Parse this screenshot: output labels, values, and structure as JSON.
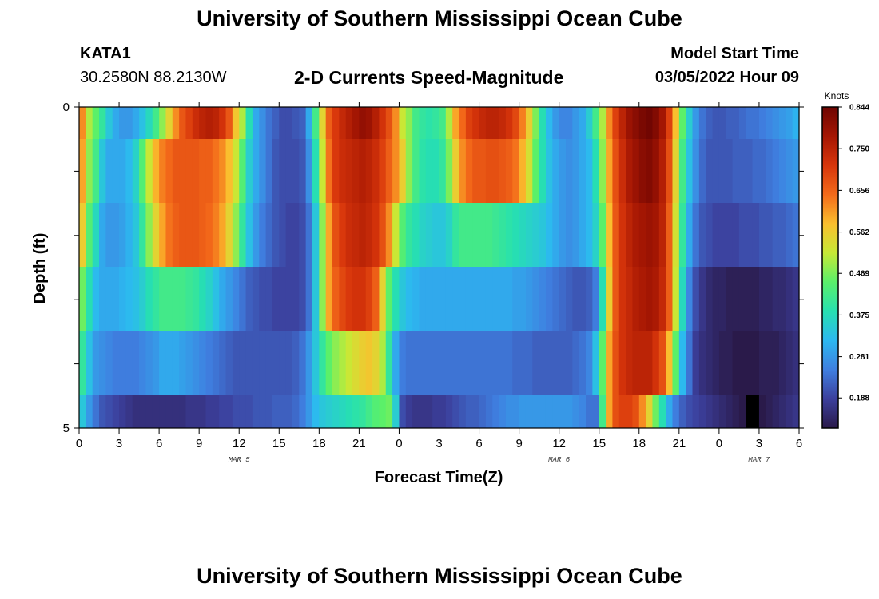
{
  "header": {
    "title": "University of Southern Mississippi Ocean Cube",
    "station": "KATA1",
    "coordinates": "30.2580N  88.2130W",
    "product": "2-D Currents Speed-Magnitude",
    "model_start_label": "Model Start Time",
    "model_start_value": "03/05/2022 Hour 09"
  },
  "footer": {
    "title": "University of Southern Mississippi Ocean Cube"
  },
  "chart_data": {
    "type": "heatmap",
    "xlabel": "Forecast Time(Z)",
    "ylabel": "Depth (ft)",
    "x_tick_labels": [
      "0",
      "3",
      "6",
      "9",
      "12",
      "15",
      "18",
      "21",
      "0",
      "3",
      "6",
      "9",
      "12",
      "15",
      "18",
      "21",
      "0",
      "3",
      "6"
    ],
    "y_tick_labels": [
      "0",
      "5"
    ],
    "y_range": [
      0,
      5
    ],
    "date_labels": [
      "MAR 5",
      "MAR 6",
      "MAR 7"
    ],
    "colorbar": {
      "title": "Knots",
      "ticks": [
        "0.844",
        "0.750",
        "0.656",
        "0.562",
        "0.469",
        "0.375",
        "0.281",
        "0.188"
      ],
      "min": 0.12,
      "max": 0.844,
      "stops": [
        "#2a1a4a",
        "#3c3f9c",
        "#3f7fe0",
        "#2cb8f0",
        "#27e0b0",
        "#5af06a",
        "#c6ea36",
        "#fbbf2e",
        "#f36a1a",
        "#d8360b",
        "#a51603",
        "#6e0502"
      ]
    },
    "hours": [
      0,
      0.5,
      1,
      1.5,
      2,
      2.5,
      3,
      3.5,
      4,
      4.5,
      5,
      5.5,
      6,
      6.5,
      7,
      7.5,
      8,
      8.5,
      9,
      9.5,
      10,
      10.5,
      11,
      11.5,
      12,
      12.5,
      13,
      13.5,
      14,
      14.5,
      15,
      15.5,
      16,
      16.5,
      17,
      17.5,
      18,
      18.5,
      19,
      19.5,
      20,
      20.5,
      21,
      21.5,
      22,
      22.5,
      23,
      23.5,
      24,
      24.5,
      25,
      25.5,
      26,
      26.5,
      27,
      27.5,
      28,
      28.5,
      29,
      29.5,
      30,
      30.5,
      31,
      31.5,
      32,
      32.5,
      33,
      33.5,
      34,
      34.5,
      35,
      35.5,
      36,
      36.5,
      37,
      37.5,
      38,
      38.5,
      39,
      39.5,
      40,
      40.5,
      41,
      41.5,
      42,
      42.5,
      43,
      43.5,
      44,
      44.5,
      45,
      45.5,
      46,
      46.5,
      47,
      47.5,
      48,
      48.5,
      49,
      49.5,
      50,
      50.5,
      51,
      51.5,
      52,
      52.5,
      53,
      53.5
    ],
    "depth_layers": [
      0,
      1,
      2,
      3,
      4,
      5
    ],
    "speed_knots": [
      [
        0.62,
        0.5,
        0.45,
        0.4,
        0.34,
        0.3,
        0.28,
        0.28,
        0.3,
        0.33,
        0.37,
        0.42,
        0.48,
        0.55,
        0.62,
        0.67,
        0.7,
        0.73,
        0.75,
        0.76,
        0.75,
        0.72,
        0.67,
        0.57,
        0.5,
        0.38,
        0.3,
        0.27,
        0.24,
        0.22,
        0.2,
        0.2,
        0.21,
        0.22,
        0.3,
        0.42,
        0.55,
        0.66,
        0.71,
        0.74,
        0.76,
        0.78,
        0.8,
        0.79,
        0.76,
        0.72,
        0.68,
        0.62,
        0.52,
        0.48,
        0.42,
        0.4,
        0.39,
        0.4,
        0.42,
        0.5,
        0.6,
        0.65,
        0.7,
        0.72,
        0.74,
        0.75,
        0.75,
        0.74,
        0.72,
        0.69,
        0.63,
        0.56,
        0.47,
        0.38,
        0.32,
        0.28,
        0.26,
        0.26,
        0.28,
        0.3,
        0.35,
        0.42,
        0.5,
        0.62,
        0.7,
        0.75,
        0.79,
        0.81,
        0.83,
        0.84,
        0.82,
        0.78,
        0.7,
        0.58,
        0.45,
        0.35,
        0.28,
        0.24,
        0.22,
        0.21,
        0.21,
        0.22,
        0.22,
        0.23,
        0.24,
        0.24,
        0.25,
        0.26,
        0.27,
        0.28,
        0.29,
        0.31
      ],
      [
        0.6,
        0.48,
        0.42,
        0.34,
        0.3,
        0.3,
        0.3,
        0.32,
        0.36,
        0.44,
        0.52,
        0.59,
        0.63,
        0.65,
        0.67,
        0.67,
        0.67,
        0.67,
        0.66,
        0.66,
        0.64,
        0.62,
        0.58,
        0.52,
        0.44,
        0.35,
        0.3,
        0.27,
        0.24,
        0.21,
        0.2,
        0.2,
        0.2,
        0.21,
        0.27,
        0.38,
        0.52,
        0.64,
        0.71,
        0.73,
        0.74,
        0.75,
        0.76,
        0.75,
        0.73,
        0.7,
        0.66,
        0.62,
        0.56,
        0.48,
        0.42,
        0.39,
        0.38,
        0.38,
        0.4,
        0.47,
        0.56,
        0.62,
        0.65,
        0.67,
        0.67,
        0.68,
        0.68,
        0.67,
        0.66,
        0.64,
        0.59,
        0.53,
        0.45,
        0.38,
        0.33,
        0.3,
        0.28,
        0.27,
        0.28,
        0.3,
        0.32,
        0.38,
        0.48,
        0.6,
        0.68,
        0.73,
        0.77,
        0.79,
        0.81,
        0.82,
        0.8,
        0.76,
        0.68,
        0.55,
        0.42,
        0.33,
        0.27,
        0.23,
        0.21,
        0.21,
        0.21,
        0.21,
        0.22,
        0.22,
        0.22,
        0.23,
        0.23,
        0.24,
        0.25,
        0.26,
        0.27,
        0.28
      ],
      [
        0.56,
        0.44,
        0.37,
        0.3,
        0.28,
        0.28,
        0.29,
        0.31,
        0.34,
        0.4,
        0.48,
        0.55,
        0.6,
        0.64,
        0.66,
        0.67,
        0.67,
        0.67,
        0.66,
        0.65,
        0.63,
        0.6,
        0.55,
        0.48,
        0.4,
        0.33,
        0.28,
        0.25,
        0.23,
        0.21,
        0.2,
        0.19,
        0.19,
        0.2,
        0.24,
        0.34,
        0.48,
        0.6,
        0.68,
        0.71,
        0.73,
        0.74,
        0.75,
        0.74,
        0.72,
        0.68,
        0.62,
        0.52,
        0.44,
        0.4,
        0.38,
        0.36,
        0.35,
        0.34,
        0.34,
        0.36,
        0.4,
        0.42,
        0.42,
        0.42,
        0.42,
        0.42,
        0.41,
        0.4,
        0.39,
        0.38,
        0.37,
        0.36,
        0.35,
        0.34,
        0.32,
        0.3,
        0.28,
        0.27,
        0.28,
        0.3,
        0.32,
        0.36,
        0.45,
        0.58,
        0.67,
        0.72,
        0.75,
        0.77,
        0.78,
        0.79,
        0.78,
        0.75,
        0.66,
        0.53,
        0.4,
        0.3,
        0.24,
        0.21,
        0.2,
        0.19,
        0.19,
        0.19,
        0.19,
        0.2,
        0.2,
        0.2,
        0.21,
        0.21,
        0.22,
        0.22,
        0.23,
        0.24
      ],
      [
        0.46,
        0.38,
        0.32,
        0.3,
        0.3,
        0.3,
        0.31,
        0.32,
        0.33,
        0.35,
        0.38,
        0.4,
        0.42,
        0.42,
        0.42,
        0.42,
        0.41,
        0.4,
        0.38,
        0.36,
        0.33,
        0.3,
        0.28,
        0.26,
        0.24,
        0.22,
        0.21,
        0.2,
        0.2,
        0.19,
        0.19,
        0.19,
        0.19,
        0.2,
        0.24,
        0.34,
        0.48,
        0.6,
        0.66,
        0.69,
        0.71,
        0.72,
        0.72,
        0.7,
        0.66,
        0.55,
        0.45,
        0.38,
        0.34,
        0.32,
        0.31,
        0.3,
        0.3,
        0.3,
        0.3,
        0.3,
        0.3,
        0.3,
        0.3,
        0.3,
        0.3,
        0.3,
        0.3,
        0.3,
        0.3,
        0.29,
        0.29,
        0.28,
        0.27,
        0.26,
        0.25,
        0.24,
        0.23,
        0.22,
        0.21,
        0.21,
        0.22,
        0.25,
        0.38,
        0.56,
        0.67,
        0.72,
        0.74,
        0.76,
        0.77,
        0.78,
        0.77,
        0.74,
        0.66,
        0.52,
        0.37,
        0.26,
        0.2,
        0.17,
        0.15,
        0.14,
        0.14,
        0.13,
        0.13,
        0.13,
        0.13,
        0.13,
        0.14,
        0.14,
        0.15,
        0.15,
        0.16,
        0.17
      ],
      [
        0.4,
        0.33,
        0.28,
        0.27,
        0.26,
        0.25,
        0.25,
        0.25,
        0.25,
        0.26,
        0.27,
        0.28,
        0.3,
        0.3,
        0.3,
        0.29,
        0.28,
        0.27,
        0.26,
        0.25,
        0.24,
        0.23,
        0.22,
        0.21,
        0.21,
        0.21,
        0.21,
        0.21,
        0.21,
        0.21,
        0.21,
        0.21,
        0.22,
        0.24,
        0.28,
        0.34,
        0.4,
        0.45,
        0.48,
        0.5,
        0.52,
        0.54,
        0.56,
        0.57,
        0.55,
        0.5,
        0.4,
        0.3,
        0.25,
        0.24,
        0.24,
        0.24,
        0.24,
        0.24,
        0.24,
        0.24,
        0.24,
        0.24,
        0.24,
        0.24,
        0.24,
        0.24,
        0.24,
        0.24,
        0.24,
        0.23,
        0.23,
        0.23,
        0.22,
        0.22,
        0.22,
        0.22,
        0.22,
        0.22,
        0.23,
        0.24,
        0.26,
        0.33,
        0.45,
        0.6,
        0.68,
        0.72,
        0.74,
        0.75,
        0.75,
        0.75,
        0.72,
        0.68,
        0.58,
        0.45,
        0.32,
        0.24,
        0.18,
        0.16,
        0.15,
        0.14,
        0.13,
        0.13,
        0.12,
        0.12,
        0.12,
        0.12,
        0.13,
        0.13,
        0.13,
        0.14,
        0.15,
        0.16
      ],
      [
        0.34,
        0.28,
        0.24,
        0.21,
        0.2,
        0.19,
        0.18,
        0.17,
        0.16,
        0.16,
        0.16,
        0.16,
        0.16,
        0.16,
        0.16,
        0.16,
        0.17,
        0.17,
        0.17,
        0.18,
        0.18,
        0.19,
        0.19,
        0.2,
        0.2,
        0.2,
        0.21,
        0.21,
        0.21,
        0.22,
        0.22,
        0.22,
        0.23,
        0.25,
        0.28,
        0.32,
        0.34,
        0.35,
        0.36,
        0.37,
        0.38,
        0.39,
        0.4,
        0.42,
        0.44,
        0.45,
        0.46,
        0.35,
        0.2,
        0.18,
        0.17,
        0.17,
        0.17,
        0.18,
        0.18,
        0.19,
        0.2,
        0.21,
        0.22,
        0.22,
        0.23,
        0.24,
        0.25,
        0.26,
        0.27,
        0.27,
        0.28,
        0.28,
        0.28,
        0.28,
        0.28,
        0.28,
        0.28,
        0.28,
        0.27,
        0.26,
        0.24,
        0.24,
        0.42,
        0.6,
        0.68,
        0.7,
        0.7,
        0.68,
        0.62,
        0.55,
        0.46,
        0.38,
        0.3,
        0.25,
        0.22,
        0.2,
        0.19,
        0.18,
        0.17,
        0.16,
        0.15,
        0.14,
        0.13,
        0.12,
        0.06,
        0.06,
        0.12,
        0.13,
        0.14,
        0.15,
        0.16,
        0.17
      ]
    ]
  }
}
